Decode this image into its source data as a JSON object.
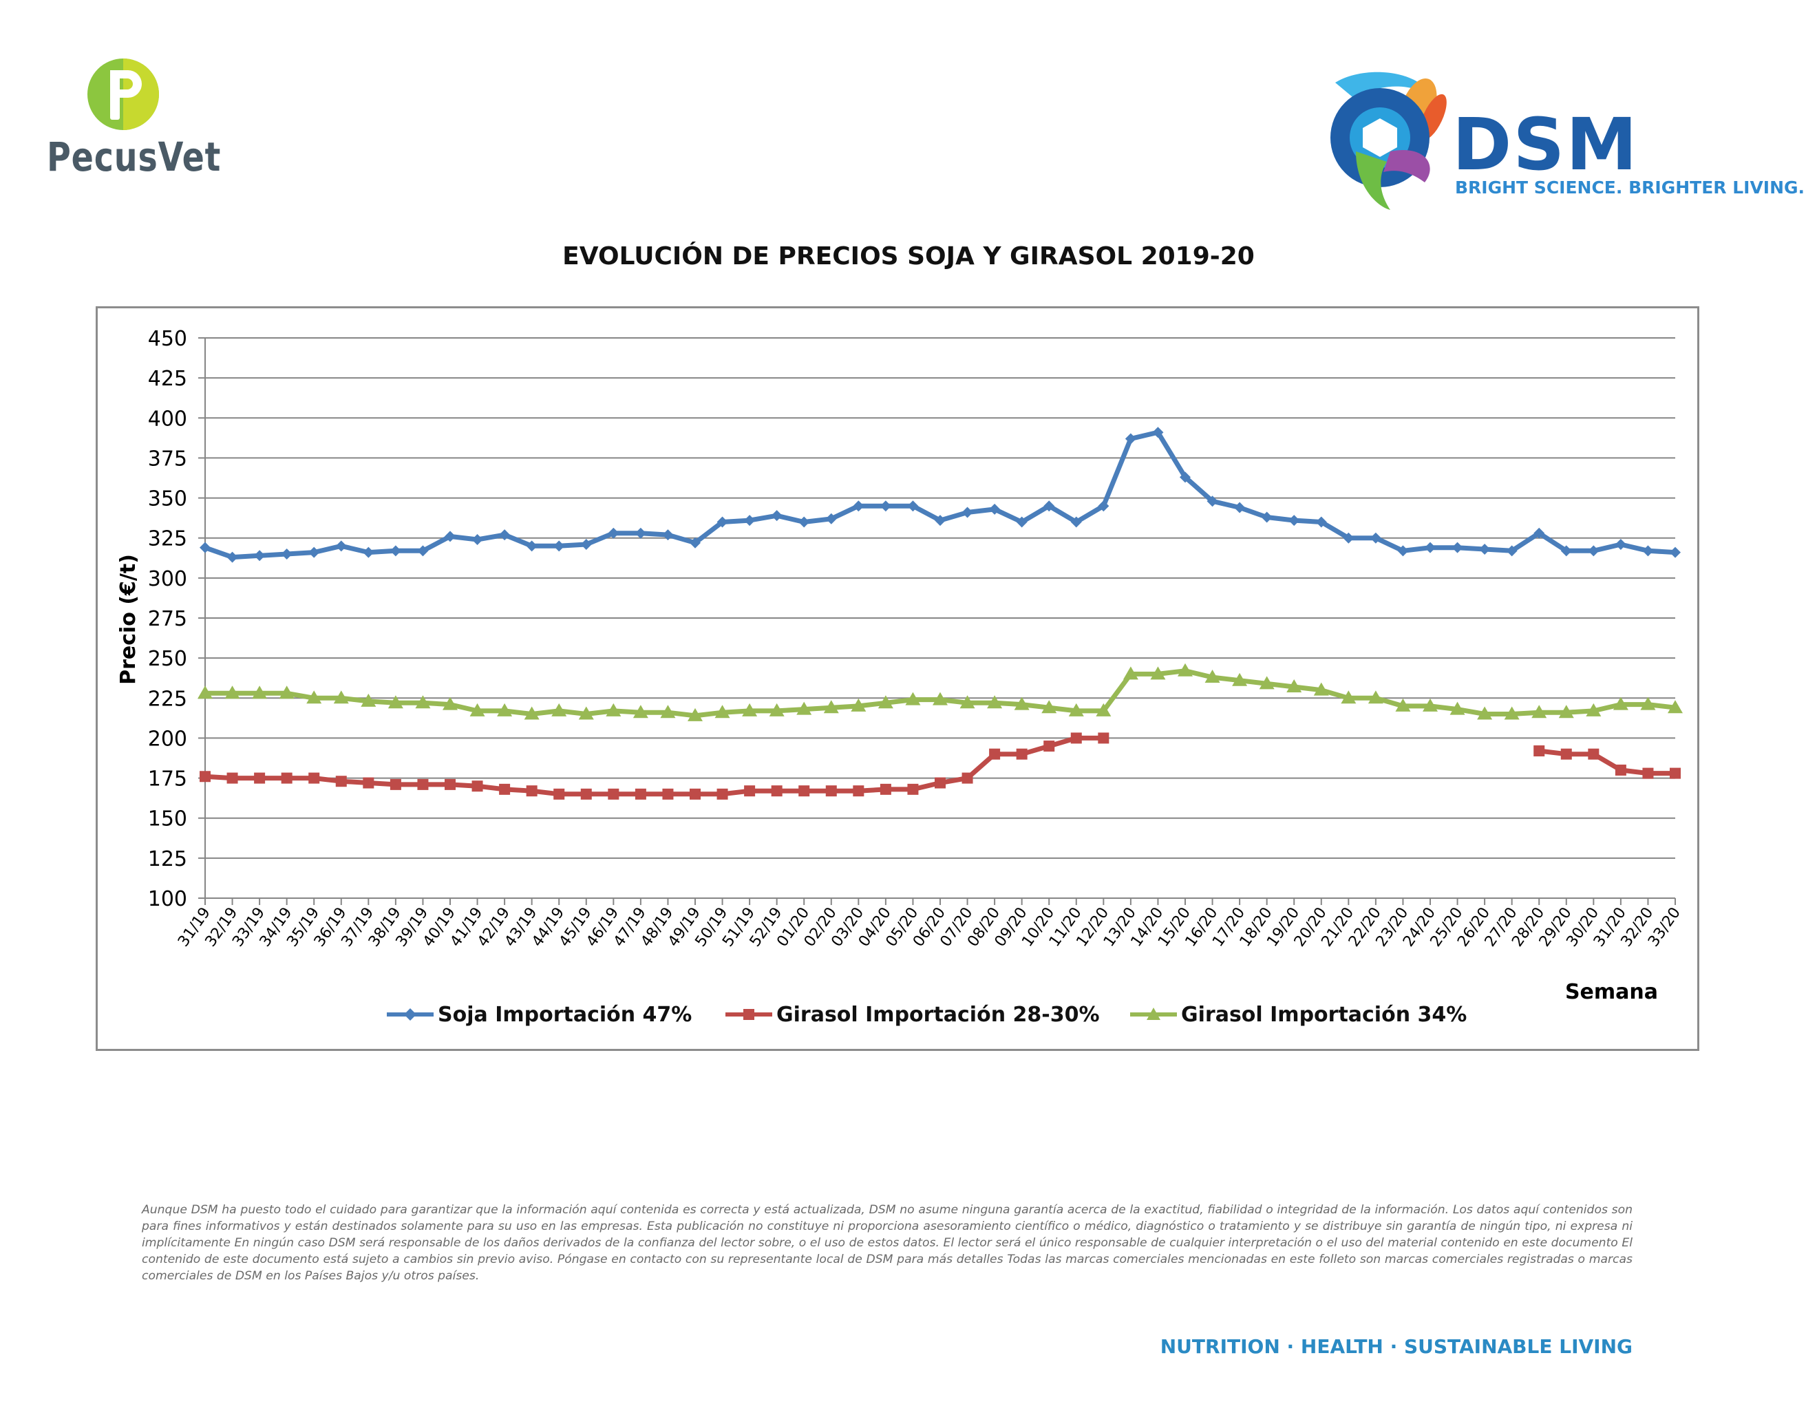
{
  "brand_left": {
    "name": "PecusVet",
    "icon": "pecusvet-logo-icon",
    "color_green": "#8cc63f",
    "color_gray": "#4a5a66"
  },
  "brand_right": {
    "name": "DSM",
    "tagline": "BRIGHT SCIENCE. BRIGHTER LIVING.",
    "icon": "dsm-logo-icon",
    "color": "#1f5ea8"
  },
  "chart_data": {
    "type": "line",
    "title": "EVOLUCIÓN DE PRECIOS SOJA Y GIRASOL 2019-20",
    "xlabel": "Semana",
    "ylabel": "Precio (€/t)",
    "ylim": [
      100,
      450
    ],
    "yticks": [
      100,
      125,
      150,
      175,
      200,
      225,
      250,
      275,
      300,
      325,
      350,
      375,
      400,
      425,
      450
    ],
    "grid": true,
    "legend_position": "bottom",
    "categories": [
      "31/19",
      "32/19",
      "33/19",
      "34/19",
      "35/19",
      "36/19",
      "37/19",
      "38/19",
      "39/19",
      "40/19",
      "41/19",
      "42/19",
      "43/19",
      "44/19",
      "45/19",
      "46/19",
      "47/19",
      "48/19",
      "49/19",
      "50/19",
      "51/19",
      "52/19",
      "01/20",
      "02/20",
      "03/20",
      "04/20",
      "05/20",
      "06/20",
      "07/20",
      "08/20",
      "09/20",
      "10/20",
      "11/20",
      "12/20",
      "13/20",
      "14/20",
      "15/20",
      "16/20",
      "17/20",
      "18/20",
      "19/20",
      "20/20",
      "21/20",
      "22/20",
      "23/20",
      "24/20",
      "25/20",
      "26/20",
      "27/20",
      "28/20",
      "29/20",
      "30/20",
      "31/20",
      "32/20",
      "33/20"
    ],
    "series": [
      {
        "name": "Soja Importación 47%",
        "color": "#4a7ebb",
        "marker": "diamond",
        "values": [
          319,
          313,
          314,
          315,
          316,
          320,
          316,
          317,
          317,
          326,
          324,
          327,
          320,
          320,
          321,
          328,
          328,
          327,
          322,
          335,
          336,
          339,
          335,
          337,
          345,
          345,
          345,
          336,
          341,
          343,
          335,
          345,
          335,
          345,
          387,
          391,
          363,
          348,
          344,
          338,
          336,
          335,
          325,
          325,
          317,
          319,
          319,
          318,
          317,
          328,
          317,
          317,
          321,
          317,
          316
        ]
      },
      {
        "name": "Girasol Importación 28-30%",
        "color": "#be4b48",
        "marker": "square",
        "values": [
          176,
          175,
          175,
          175,
          175,
          173,
          172,
          171,
          171,
          171,
          170,
          168,
          167,
          165,
          165,
          165,
          165,
          165,
          165,
          165,
          167,
          167,
          167,
          167,
          167,
          168,
          168,
          172,
          175,
          190,
          190,
          195,
          200,
          200,
          null,
          null,
          null,
          null,
          null,
          null,
          null,
          null,
          null,
          null,
          null,
          null,
          null,
          null,
          null,
          192,
          190,
          190,
          180,
          178,
          178
        ]
      },
      {
        "name": "Girasol Importación 34%",
        "color": "#98b954",
        "marker": "triangle",
        "values": [
          228,
          228,
          228,
          228,
          225,
          225,
          223,
          222,
          222,
          221,
          217,
          217,
          215,
          217,
          215,
          217,
          216,
          216,
          214,
          216,
          217,
          217,
          218,
          219,
          220,
          222,
          224,
          224,
          222,
          222,
          221,
          219,
          217,
          217,
          240,
          240,
          242,
          238,
          236,
          234,
          232,
          230,
          225,
          225,
          220,
          220,
          218,
          215,
          215,
          216,
          216,
          217,
          221,
          221,
          219
        ]
      }
    ]
  },
  "disclaimer": "Aunque DSM ha puesto todo el cuidado para garantizar que la información aquí contenida es correcta y está actualizada, DSM no asume ninguna garantía acerca de la exactitud, fiabilidad o integridad de la información. Los datos aquí contenidos son para fines informativos y están destinados solamente para su uso en las empresas. Esta publicación no constituye ni proporciona asesoramiento científico o médico, diagnóstico o tratamiento y se distribuye sin garantía de ningún tipo, ni expresa ni implícitamente En ningún caso DSM será responsable de los daños derivados de la confianza del lector sobre, o el uso de estos datos. El lector será el único responsable de cualquier interpretación o el uso del material contenido en este documento El contenido de este documento está sujeto a cambios sin previo aviso. Póngase en contacto con su representante local de DSM para más detalles Todas las marcas comerciales mencionadas en este folleto son marcas comerciales registradas o marcas comerciales de DSM en los Países Bajos y/u otros países.",
  "footer_tagline": "NUTRITION · HEALTH · SUSTAINABLE LIVING"
}
